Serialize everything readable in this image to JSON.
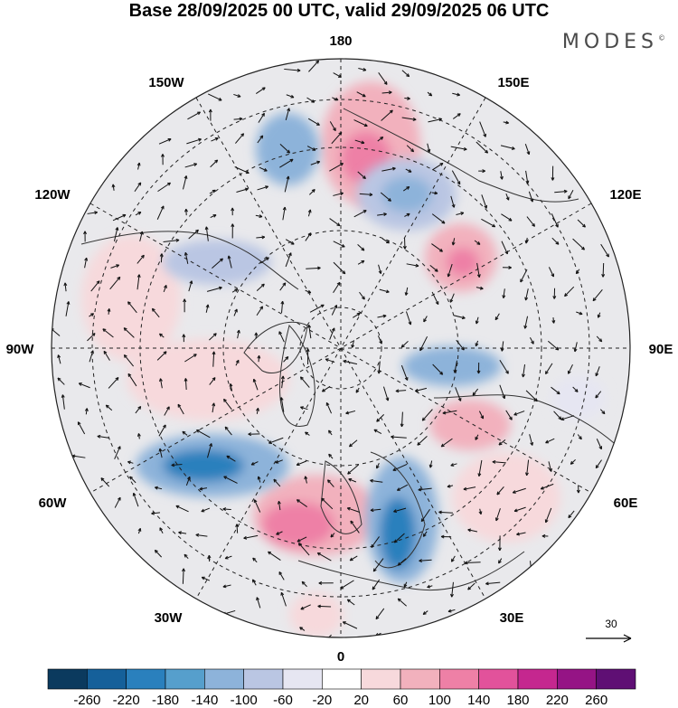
{
  "title": "Base 28/09/2025 00 UTC, valid 29/09/2025 06 UTC",
  "brand": "MODES",
  "brand_mark": "©",
  "longitude_labels": {
    "top": "180",
    "bottom": "0",
    "left": "90W",
    "right": "90E",
    "upper_left_150": "150W",
    "upper_left_120": "120W",
    "upper_right_150": "150E",
    "upper_right_120": "120E",
    "lower_left_60": "60W",
    "lower_left_30": "30W",
    "lower_right_60": "60E",
    "lower_right_30": "30E"
  },
  "reference_vector": {
    "label": "30"
  },
  "colorbar": {
    "ticks": [
      "-260",
      "-220",
      "-180",
      "-140",
      "-100",
      "-60",
      "-20",
      "20",
      "60",
      "100",
      "140",
      "180",
      "220",
      "260"
    ],
    "colors": [
      "#0b3a5e",
      "#15609a",
      "#2a80bd",
      "#569fcc",
      "#8db3da",
      "#bac6e3",
      "#e6e6f2",
      "#ffffff",
      "#f7d9dc",
      "#f2b1bd",
      "#ee80a6",
      "#e2529b",
      "#c5278f",
      "#951485",
      "#5f0f74"
    ]
  },
  "chart_data": {
    "type": "polar-stereographic-map",
    "field": "geopotential height anomaly with wind vectors",
    "projection": "north polar stereographic, 0 at bottom, 180 at top",
    "anomaly_centers": [
      {
        "region": "North Atlantic south of Greenland",
        "sign": "negative",
        "magnitude": "strong"
      },
      {
        "region": "Northwest Europe / Scandinavia",
        "sign": "negative",
        "magnitude": "strong"
      },
      {
        "region": "Western Europe / British Isles",
        "sign": "positive",
        "magnitude": "moderate"
      },
      {
        "region": "Bering Sea",
        "sign": "positive",
        "magnitude": "moderate"
      },
      {
        "region": "Gulf of Alaska",
        "sign": "negative",
        "magnitude": "moderate"
      },
      {
        "region": "East Siberia / Kamchatka",
        "sign": "negative",
        "magnitude": "moderate"
      },
      {
        "region": "Northeast Asia",
        "sign": "positive",
        "magnitude": "moderate"
      },
      {
        "region": "Western North America",
        "sign": "positive",
        "magnitude": "weak"
      },
      {
        "region": "Northern Canada / Hudson Bay",
        "sign": "positive",
        "magnitude": "weak"
      },
      {
        "region": "Central Siberia",
        "sign": "negative",
        "magnitude": "weak"
      },
      {
        "region": "Western Siberia / Urals",
        "sign": "positive",
        "magnitude": "weak"
      }
    ]
  }
}
